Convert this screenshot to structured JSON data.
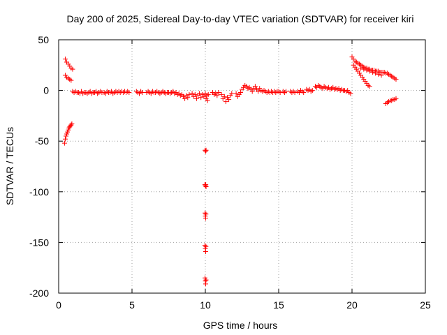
{
  "chart_data": {
    "type": "scatter",
    "title": "Day 200 of 2025, Sidereal Day-to-day VTEC variation (SDTVAR) for receiver kiri",
    "xlabel": "GPS time / hours",
    "ylabel": "SDTVAR / TECUs",
    "xlim": [
      0,
      25
    ],
    "ylim": [
      -200,
      50
    ],
    "xticks": [
      0,
      5,
      10,
      15,
      20,
      25
    ],
    "yticks": [
      -200,
      -150,
      -100,
      -50,
      0,
      50
    ],
    "grid": true,
    "marker": "plus",
    "color": "#ff0000",
    "series": [
      {
        "points": [
          [
            0.45,
            31
          ],
          [
            0.55,
            28
          ],
          [
            0.65,
            26
          ],
          [
            0.75,
            24
          ],
          [
            0.85,
            22
          ],
          [
            0.95,
            21
          ],
          [
            0.45,
            15
          ],
          [
            0.55,
            13
          ],
          [
            0.65,
            12
          ],
          [
            0.75,
            11
          ],
          [
            0.85,
            10
          ],
          [
            0.4,
            -52
          ],
          [
            0.45,
            -48
          ],
          [
            0.5,
            -45
          ],
          [
            0.55,
            -43
          ],
          [
            0.6,
            -41
          ],
          [
            0.65,
            -39
          ],
          [
            0.7,
            -37
          ],
          [
            0.75,
            -36
          ],
          [
            0.8,
            -35
          ],
          [
            0.85,
            -34
          ],
          [
            0.9,
            -33
          ],
          [
            0.95,
            -1
          ],
          [
            1.05,
            -2
          ],
          [
            1.15,
            -1
          ],
          [
            1.25,
            -2
          ],
          [
            1.35,
            -2
          ],
          [
            1.45,
            -3
          ],
          [
            1.55,
            -1
          ],
          [
            1.65,
            -3
          ],
          [
            1.75,
            -2
          ],
          [
            1.85,
            -2
          ],
          [
            1.95,
            -3
          ],
          [
            2.05,
            -2
          ],
          [
            2.15,
            -1
          ],
          [
            2.25,
            -3
          ],
          [
            2.35,
            -2
          ],
          [
            2.45,
            -2
          ],
          [
            2.55,
            -1
          ],
          [
            2.65,
            -3
          ],
          [
            2.75,
            -2
          ],
          [
            2.85,
            -1
          ],
          [
            2.95,
            -2
          ],
          [
            3.1,
            -2
          ],
          [
            3.2,
            -3
          ],
          [
            3.3,
            -1
          ],
          [
            3.4,
            -2
          ],
          [
            3.5,
            -2
          ],
          [
            3.6,
            -1
          ],
          [
            3.7,
            -3
          ],
          [
            3.8,
            -2
          ],
          [
            3.9,
            -1
          ],
          [
            4.0,
            -2
          ],
          [
            4.1,
            -1
          ],
          [
            4.2,
            -2
          ],
          [
            4.3,
            -1
          ],
          [
            4.4,
            -2
          ],
          [
            4.5,
            -1
          ],
          [
            4.6,
            -2
          ],
          [
            4.7,
            -1
          ],
          [
            4.8,
            -2
          ],
          [
            5.3,
            -1
          ],
          [
            5.4,
            -2
          ],
          [
            5.5,
            -3
          ],
          [
            5.6,
            -1
          ],
          [
            5.7,
            -2
          ],
          [
            6.0,
            -2
          ],
          [
            6.1,
            -1
          ],
          [
            6.2,
            -2
          ],
          [
            6.3,
            -3
          ],
          [
            6.4,
            -1
          ],
          [
            6.5,
            -2
          ],
          [
            6.6,
            -2
          ],
          [
            6.7,
            -1
          ],
          [
            6.8,
            -2
          ],
          [
            6.9,
            -3
          ],
          [
            7.0,
            -2
          ],
          [
            7.1,
            -1
          ],
          [
            7.2,
            -2
          ],
          [
            7.3,
            -3
          ],
          [
            7.4,
            -2
          ],
          [
            7.5,
            -2
          ],
          [
            7.6,
            -3
          ],
          [
            7.7,
            -2
          ],
          [
            7.8,
            -1
          ],
          [
            7.9,
            -3
          ],
          [
            8.0,
            -2
          ],
          [
            8.1,
            -4
          ],
          [
            8.2,
            -3
          ],
          [
            8.3,
            -5
          ],
          [
            8.4,
            -4
          ],
          [
            8.5,
            -6
          ],
          [
            8.6,
            -8
          ],
          [
            8.7,
            -5
          ],
          [
            8.8,
            -7
          ],
          [
            8.9,
            -4
          ],
          [
            9.1,
            -3
          ],
          [
            9.2,
            -6
          ],
          [
            9.3,
            -4
          ],
          [
            9.4,
            -8
          ],
          [
            9.5,
            -5
          ],
          [
            9.6,
            -3
          ],
          [
            9.7,
            -7
          ],
          [
            9.8,
            -4
          ],
          [
            9.9,
            -6
          ],
          [
            10.0,
            -3
          ],
          [
            10.05,
            -8
          ],
          [
            10.1,
            -5
          ],
          [
            10.15,
            -10
          ],
          [
            10.2,
            -4
          ],
          [
            10.5,
            -2
          ],
          [
            10.6,
            -4
          ],
          [
            10.7,
            -3
          ],
          [
            10.8,
            -5
          ],
          [
            10.9,
            -2
          ],
          [
            11.1,
            -4
          ],
          [
            11.2,
            -8
          ],
          [
            11.3,
            -6
          ],
          [
            11.4,
            -11
          ],
          [
            11.5,
            -7
          ],
          [
            11.6,
            -9
          ],
          [
            11.7,
            -5
          ],
          [
            11.8,
            -3
          ],
          [
            12.1,
            -3
          ],
          [
            12.2,
            -6
          ],
          [
            12.3,
            -4
          ],
          [
            12.4,
            -2
          ],
          [
            12.5,
            1
          ],
          [
            12.6,
            3
          ],
          [
            12.7,
            5
          ],
          [
            12.8,
            4
          ],
          [
            12.9,
            2
          ],
          [
            13.0,
            3
          ],
          [
            13.1,
            1
          ],
          [
            13.2,
            -1
          ],
          [
            13.3,
            2
          ],
          [
            13.4,
            4
          ],
          [
            13.5,
            1
          ],
          [
            13.6,
            -1
          ],
          [
            13.7,
            2
          ],
          [
            13.8,
            0
          ],
          [
            13.9,
            -1
          ],
          [
            14.0,
            0
          ],
          [
            14.1,
            -1
          ],
          [
            14.2,
            -2
          ],
          [
            14.3,
            -1
          ],
          [
            14.4,
            -2
          ],
          [
            14.5,
            -1
          ],
          [
            14.6,
            -2
          ],
          [
            14.7,
            -1
          ],
          [
            14.8,
            -2
          ],
          [
            14.9,
            -1
          ],
          [
            15.0,
            -1
          ],
          [
            15.1,
            -2
          ],
          [
            15.3,
            -1
          ],
          [
            15.4,
            -2
          ],
          [
            15.5,
            -1
          ],
          [
            15.8,
            -1
          ],
          [
            15.9,
            -2
          ],
          [
            16.0,
            -1
          ],
          [
            16.1,
            -2
          ],
          [
            16.3,
            -1
          ],
          [
            16.4,
            -2
          ],
          [
            16.5,
            0
          ],
          [
            16.6,
            -1
          ],
          [
            16.7,
            -2
          ],
          [
            16.9,
            1
          ],
          [
            17.0,
            0
          ],
          [
            17.1,
            1
          ],
          [
            17.2,
            -1
          ],
          [
            17.3,
            0
          ],
          [
            17.5,
            4
          ],
          [
            17.6,
            3
          ],
          [
            17.7,
            5
          ],
          [
            17.8,
            4
          ],
          [
            17.9,
            3
          ],
          [
            18.0,
            2
          ],
          [
            18.1,
            4
          ],
          [
            18.2,
            3
          ],
          [
            18.3,
            2
          ],
          [
            18.4,
            3
          ],
          [
            18.5,
            1
          ],
          [
            18.6,
            2
          ],
          [
            18.7,
            3
          ],
          [
            18.8,
            1
          ],
          [
            18.9,
            2
          ],
          [
            19.0,
            1
          ],
          [
            19.1,
            2
          ],
          [
            19.2,
            0
          ],
          [
            19.3,
            1
          ],
          [
            19.4,
            0
          ],
          [
            19.5,
            0
          ],
          [
            19.6,
            -1
          ],
          [
            19.7,
            0
          ],
          [
            19.8,
            -2
          ],
          [
            19.9,
            -3
          ],
          [
            20.0,
            33
          ],
          [
            20.1,
            31
          ],
          [
            20.2,
            29
          ],
          [
            20.3,
            28
          ],
          [
            20.4,
            27
          ],
          [
            20.5,
            26
          ],
          [
            20.6,
            25
          ],
          [
            20.7,
            24
          ],
          [
            20.8,
            23
          ],
          [
            20.9,
            22
          ],
          [
            21.0,
            22
          ],
          [
            21.1,
            21
          ],
          [
            21.2,
            21
          ],
          [
            21.3,
            20
          ],
          [
            21.4,
            20
          ],
          [
            21.5,
            20
          ],
          [
            21.6,
            19
          ],
          [
            21.7,
            19
          ],
          [
            21.8,
            19
          ],
          [
            21.9,
            18
          ],
          [
            22.0,
            18
          ],
          [
            22.1,
            18
          ],
          [
            22.2,
            18
          ],
          [
            22.3,
            17
          ],
          [
            22.4,
            17
          ],
          [
            22.5,
            16
          ],
          [
            22.6,
            15
          ],
          [
            22.7,
            14
          ],
          [
            22.8,
            13
          ],
          [
            22.9,
            12
          ],
          [
            23.0,
            11
          ],
          [
            20.1,
            25
          ],
          [
            20.2,
            23
          ],
          [
            20.3,
            21
          ],
          [
            20.4,
            19
          ],
          [
            20.5,
            17
          ],
          [
            20.6,
            15
          ],
          [
            20.7,
            13
          ],
          [
            20.8,
            11
          ],
          [
            20.9,
            9
          ],
          [
            21.0,
            7
          ],
          [
            21.1,
            5
          ],
          [
            21.2,
            4
          ],
          [
            20.6,
            22
          ],
          [
            20.8,
            21
          ],
          [
            21.0,
            20
          ],
          [
            21.2,
            19
          ],
          [
            21.4,
            18
          ],
          [
            21.6,
            17
          ],
          [
            21.8,
            16
          ],
          [
            22.0,
            15
          ],
          [
            22.3,
            -13
          ],
          [
            22.4,
            -12
          ],
          [
            22.5,
            -11
          ],
          [
            22.6,
            -10
          ],
          [
            22.7,
            -10
          ],
          [
            22.8,
            -9
          ],
          [
            22.9,
            -9
          ],
          [
            23.0,
            -8
          ],
          [
            9.98,
            -59
          ],
          [
            10.02,
            -60
          ],
          [
            10.05,
            -59
          ],
          [
            9.97,
            -93
          ],
          [
            10.0,
            -94
          ],
          [
            10.03,
            -93
          ],
          [
            10.05,
            -95
          ],
          [
            9.98,
            -121
          ],
          [
            10.0,
            -124
          ],
          [
            10.02,
            -126
          ],
          [
            10.04,
            -122
          ],
          [
            9.97,
            -153
          ],
          [
            10.0,
            -156
          ],
          [
            10.02,
            -159
          ],
          [
            10.04,
            -154
          ],
          [
            9.98,
            -185
          ],
          [
            10.0,
            -188
          ],
          [
            10.02,
            -191
          ],
          [
            10.05,
            -187
          ]
        ]
      }
    ]
  }
}
